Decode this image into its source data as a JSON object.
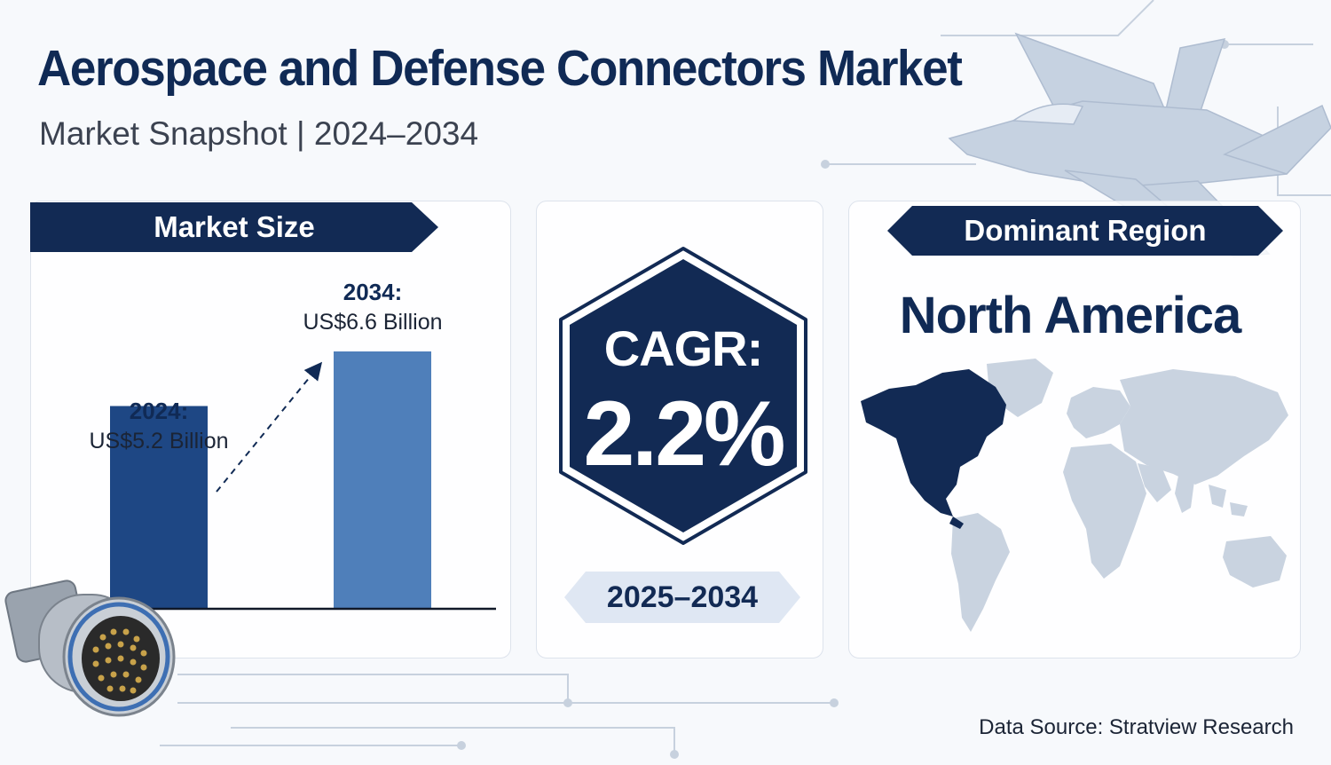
{
  "header": {
    "title": "Aerospace and Defense Connectors Market",
    "subtitle": "Market Snapshot | 2024–2034"
  },
  "market_size": {
    "heading": "Market Size"
  },
  "chart_data": {
    "type": "bar",
    "title": "Market Size",
    "categories": [
      "2024:",
      "2034:"
    ],
    "values": [
      5.2,
      6.6
    ],
    "value_labels": [
      "US$5.2 Billion",
      "US$6.6 Billion"
    ],
    "unit": "US$ Billion",
    "ylim": [
      0,
      6.6
    ],
    "grid": false,
    "colors": [
      "#1e4784",
      "#4f7fba"
    ]
  },
  "cagr": {
    "label": "CAGR:",
    "value": "2.2%",
    "period": "2025–2034"
  },
  "region": {
    "heading": "Dominant Region",
    "name": "North America",
    "highlight_color": "#122a54",
    "map_color": "#c9d3e0"
  },
  "footer": {
    "source": "Data Source: Stratview Research"
  },
  "decorations": {
    "jet": "fighter-jet-illustration",
    "connector": "circular-connector-illustration"
  }
}
